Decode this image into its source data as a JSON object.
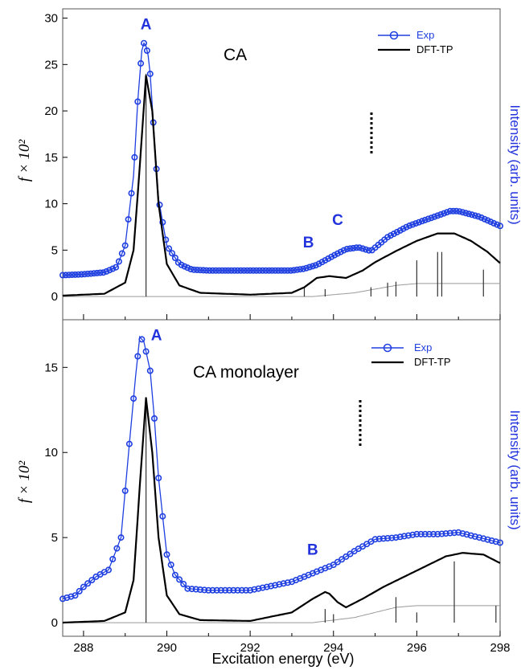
{
  "figure": {
    "xlabel": "Excitation energy (eV)",
    "x_ticks": [
      "288",
      "290",
      "292",
      "294",
      "296",
      "298"
    ]
  },
  "chart_data": [
    {
      "type": "line",
      "title": "CA",
      "ylabel": "f × 10²",
      "ylabel_right": "Intensity (arb. units)",
      "xlim": [
        287.5,
        298
      ],
      "ylim": [
        -2.5,
        31
      ],
      "y_ticks": [
        "0",
        "5",
        "10",
        "15",
        "20",
        "25",
        "30"
      ],
      "legend": [
        "Exp",
        "DFT-TP"
      ],
      "legend_position": "top-right",
      "annotations": [
        {
          "text": "A",
          "x": 289.5,
          "y": 28.8
        },
        {
          "text": "B",
          "x": 293.4,
          "y": 5.3
        },
        {
          "text": "C",
          "x": 294.1,
          "y": 7.7
        }
      ],
      "series": [
        {
          "name": "Exp",
          "color": "#1f3fe0",
          "x": [
            287.5,
            288.0,
            288.5,
            288.8,
            289.0,
            289.2,
            289.3,
            289.4,
            289.45,
            289.5,
            289.55,
            289.6,
            289.7,
            289.8,
            290.0,
            290.3,
            290.6,
            291.0,
            292.0,
            293.0,
            293.3,
            293.6,
            293.8,
            294.0,
            294.3,
            294.6,
            294.9,
            295.3,
            295.8,
            296.3,
            296.8,
            297.0,
            297.5,
            298.0
          ],
          "values": [
            2.3,
            2.4,
            2.6,
            3.2,
            5.5,
            13.0,
            21.0,
            26.5,
            27.3,
            27.0,
            26.0,
            24.0,
            17.0,
            10.5,
            5.5,
            3.5,
            2.9,
            2.8,
            2.8,
            2.8,
            3.0,
            3.4,
            3.9,
            4.4,
            5.1,
            5.3,
            4.9,
            6.4,
            7.6,
            8.4,
            9.2,
            9.2,
            8.6,
            7.6
          ]
        },
        {
          "name": "DFT-TP",
          "color": "#000000",
          "x": [
            287.5,
            288.5,
            289.0,
            289.2,
            289.35,
            289.5,
            289.65,
            289.8,
            290.0,
            290.3,
            290.8,
            292.0,
            293.0,
            293.3,
            293.6,
            293.9,
            294.3,
            294.7,
            295.0,
            295.5,
            296.0,
            296.5,
            296.9,
            297.3,
            297.7,
            298.0
          ],
          "values": [
            0.1,
            0.3,
            1.5,
            5.0,
            14.0,
            23.8,
            20.0,
            10.0,
            3.5,
            1.2,
            0.4,
            0.2,
            0.4,
            1.0,
            2.0,
            2.2,
            2.0,
            2.8,
            3.7,
            4.9,
            6.0,
            6.8,
            6.8,
            6.0,
            4.8,
            3.6
          ]
        }
      ],
      "stick_spectrum": {
        "x": [
          289.5,
          293.3,
          293.8,
          294.9,
          295.3,
          295.5,
          296.0,
          296.5,
          296.6,
          297.6
        ],
        "values": [
          24.0,
          1.0,
          0.8,
          1.0,
          1.5,
          1.6,
          3.9,
          4.8,
          4.8,
          2.9
        ]
      },
      "step_baseline": {
        "x": [
          293.5,
          294.5,
          295.5,
          296.0,
          298.0
        ],
        "values": [
          0.0,
          0.4,
          1.2,
          1.4,
          1.4
        ]
      }
    },
    {
      "type": "line",
      "title": "CA monolayer",
      "ylabel": "f × 10²",
      "ylabel_right": "Intensity (arb. units)",
      "xlim": [
        287.5,
        298
      ],
      "ylim": [
        -0.8,
        17.8
      ],
      "y_ticks": [
        "0",
        "5",
        "10",
        "15"
      ],
      "legend": [
        "Exp",
        "DFT-TP"
      ],
      "legend_position": "top-right",
      "annotations": [
        {
          "text": "A",
          "x": 289.75,
          "y": 16.6
        },
        {
          "text": "B",
          "x": 293.5,
          "y": 4.0
        }
      ],
      "series": [
        {
          "name": "Exp",
          "color": "#1f3fe0",
          "x": [
            287.5,
            287.8,
            288.0,
            288.3,
            288.6,
            288.9,
            289.1,
            289.25,
            289.35,
            289.45,
            289.6,
            289.7,
            289.8,
            290.0,
            290.2,
            290.5,
            291.0,
            292.0,
            293.0,
            293.5,
            294.0,
            294.5,
            295.0,
            295.5,
            296.0,
            296.5,
            297.0,
            297.5,
            298.0
          ],
          "values": [
            1.4,
            1.6,
            2.1,
            2.7,
            3.1,
            5.0,
            10.5,
            14.5,
            16.8,
            16.5,
            14.8,
            12.0,
            8.5,
            4.0,
            2.8,
            2.0,
            1.9,
            1.9,
            2.4,
            2.9,
            3.4,
            4.2,
            4.9,
            5.0,
            5.2,
            5.2,
            5.3,
            5.0,
            4.7
          ]
        },
        {
          "name": "DFT-TP",
          "color": "#000000",
          "x": [
            287.5,
            288.5,
            289.0,
            289.2,
            289.35,
            289.5,
            289.65,
            289.8,
            290.0,
            290.3,
            290.8,
            292.0,
            293.0,
            293.5,
            293.8,
            293.9,
            294.1,
            294.3,
            294.7,
            295.2,
            295.7,
            296.2,
            296.7,
            297.1,
            297.6,
            298.0
          ],
          "values": [
            0.0,
            0.1,
            0.6,
            2.5,
            8.0,
            13.2,
            10.0,
            5.0,
            1.6,
            0.5,
            0.15,
            0.1,
            0.6,
            1.4,
            1.8,
            1.7,
            1.2,
            0.9,
            1.4,
            2.1,
            2.7,
            3.3,
            3.9,
            4.1,
            4.0,
            3.5
          ]
        }
      ],
      "stick_spectrum": {
        "x": [
          289.5,
          293.8,
          294.0,
          295.5,
          296.0,
          296.9,
          297.9
        ],
        "values": [
          13.2,
          0.8,
          0.5,
          1.5,
          0.6,
          3.6,
          1.0
        ]
      },
      "step_baseline": {
        "x": [
          293.5,
          294.5,
          295.5,
          296.0,
          298.0
        ],
        "values": [
          0.0,
          0.3,
          0.9,
          1.0,
          1.0
        ]
      }
    }
  ]
}
